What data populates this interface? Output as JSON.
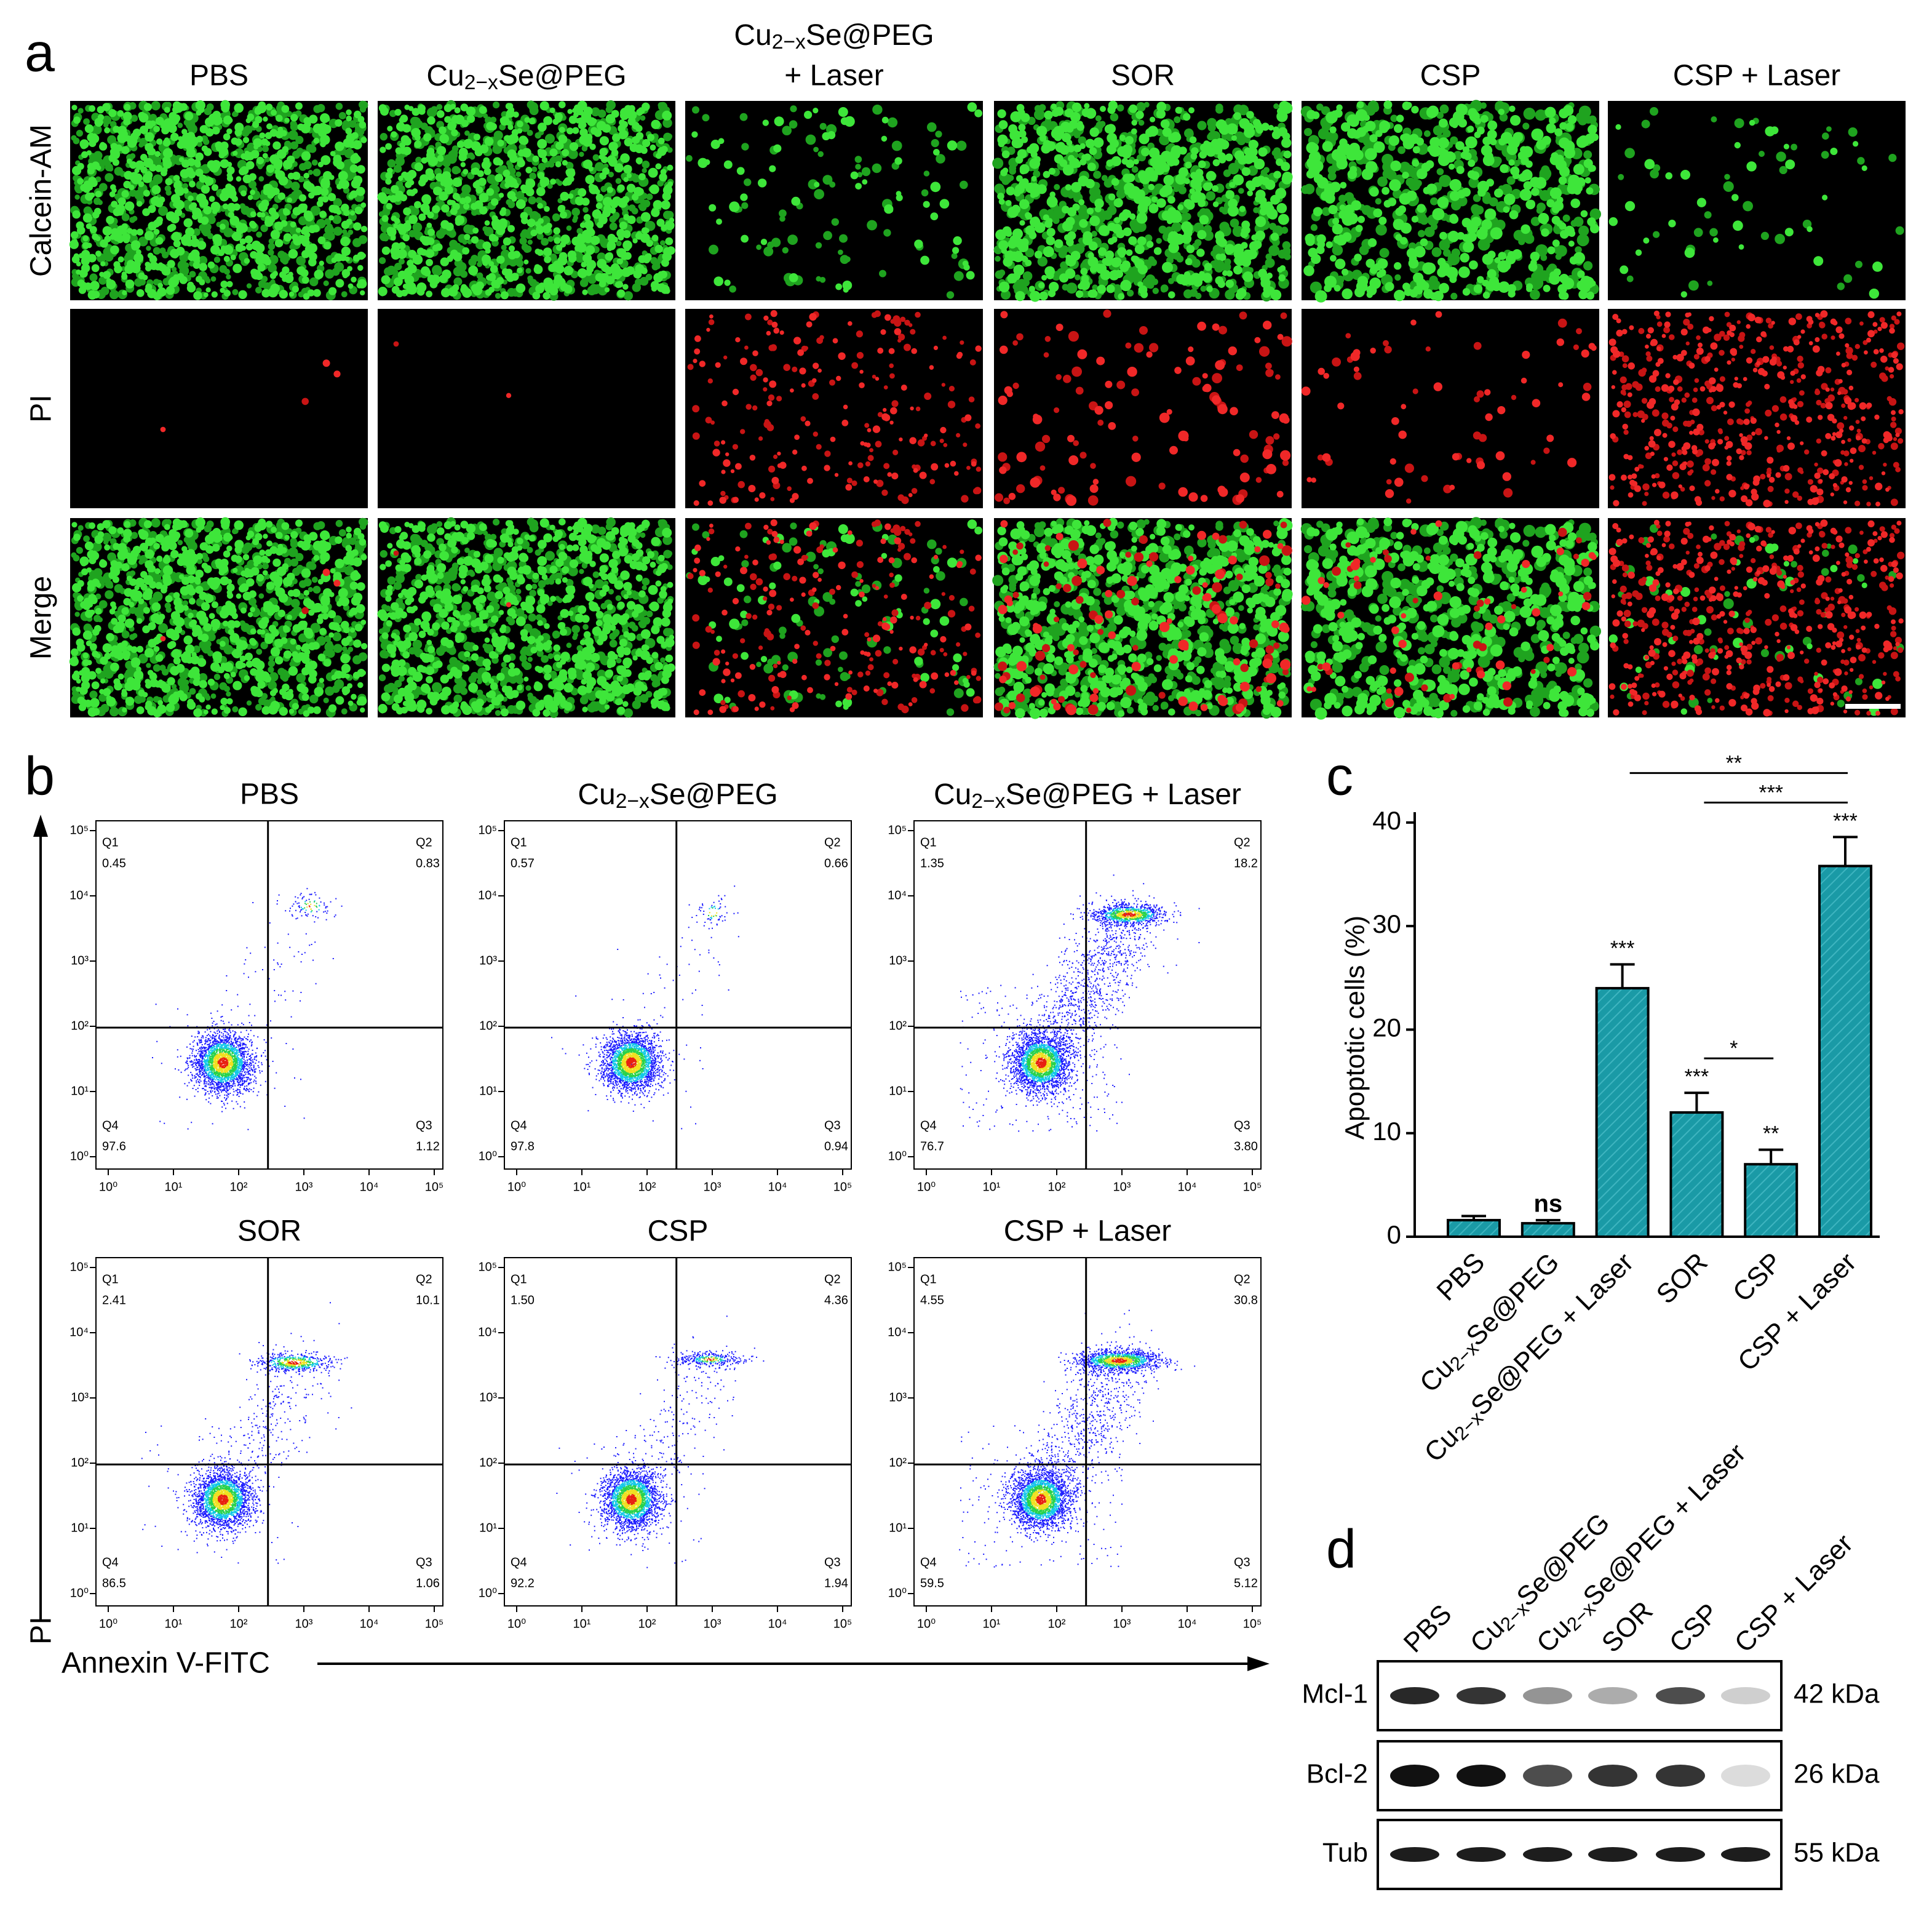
{
  "panel_a": {
    "label": "a",
    "columns": [
      "PBS",
      "Cu2−xSe@PEG",
      [
        "Cu2−xSe@PEG",
        "+ Laser"
      ],
      "SOR",
      "CSP",
      "CSP + Laser"
    ],
    "rows": [
      "Calcein-AM",
      "PI",
      "Merge"
    ]
  },
  "panel_b": {
    "label": "b",
    "y_axis_label": "PI",
    "x_axis_label": "Annexin V-FITC",
    "axis_ticks": [
      "10⁰",
      "10¹",
      "10²",
      "10³",
      "10⁴",
      "10⁵"
    ],
    "plots": [
      {
        "title": "PBS",
        "quadrants": [
          {
            "name": "Q1",
            "value": "0.45"
          },
          {
            "name": "Q2",
            "value": "0.83"
          },
          {
            "name": "Q4",
            "value": "97.6"
          },
          {
            "name": "Q3",
            "value": "1.12"
          }
        ]
      },
      {
        "title": "Cu2−xSe@PEG",
        "quadrants": [
          {
            "name": "Q1",
            "value": "0.57"
          },
          {
            "name": "Q2",
            "value": "0.66"
          },
          {
            "name": "Q4",
            "value": "97.8"
          },
          {
            "name": "Q3",
            "value": "0.94"
          }
        ]
      },
      {
        "title": "Cu2−xSe@PEG + Laser",
        "quadrants": [
          {
            "name": "Q1",
            "value": "1.35"
          },
          {
            "name": "Q2",
            "value": "18.2"
          },
          {
            "name": "Q4",
            "value": "76.7"
          },
          {
            "name": "Q3",
            "value": "3.80"
          }
        ]
      },
      {
        "title": "SOR",
        "quadrants": [
          {
            "name": "Q1",
            "value": "2.41"
          },
          {
            "name": "Q2",
            "value": "10.1"
          },
          {
            "name": "Q4",
            "value": "86.5"
          },
          {
            "name": "Q3",
            "value": "1.06"
          }
        ]
      },
      {
        "title": "CSP",
        "quadrants": [
          {
            "name": "Q1",
            "value": "1.50"
          },
          {
            "name": "Q2",
            "value": "4.36"
          },
          {
            "name": "Q4",
            "value": "92.2"
          },
          {
            "name": "Q3",
            "value": "1.94"
          }
        ]
      },
      {
        "title": "CSP + Laser",
        "quadrants": [
          {
            "name": "Q1",
            "value": "4.55"
          },
          {
            "name": "Q2",
            "value": "30.8"
          },
          {
            "name": "Q4",
            "value": "59.5"
          },
          {
            "name": "Q3",
            "value": "5.12"
          }
        ]
      }
    ]
  },
  "chart_data": {
    "type": "bar",
    "panel_label": "c",
    "y_label": "Apoptotic cells (%)",
    "categories": [
      "PBS",
      "Cu2−xSe@PEG",
      "Cu2−xSe@PEG + Laser",
      "SOR",
      "CSP",
      "CSP + Laser"
    ],
    "values": [
      1.6,
      1.3,
      24,
      12,
      7,
      35.8
    ],
    "errors": [
      0.4,
      0.3,
      2.3,
      1.9,
      1.4,
      2.8
    ],
    "annotations": [
      null,
      "ns",
      "***",
      "***",
      "**",
      "***"
    ],
    "comparisons": [
      {
        "pair": [
          2,
          5
        ],
        "label": "**"
      },
      {
        "pair": [
          3,
          5
        ],
        "label": "***"
      },
      {
        "pair": [
          3,
          4
        ],
        "label": "*"
      }
    ],
    "color": "#1a9aa6",
    "ylim": [
      0,
      41
    ],
    "yticks": [
      0,
      10,
      20,
      30,
      40
    ]
  },
  "panel_d": {
    "label": "d",
    "lanes": [
      "PBS",
      "Cu2−xSe@PEG",
      "Cu2−xSe@PEG + Laser",
      "SOR",
      "CSP",
      "CSP + Laser"
    ],
    "rows": [
      {
        "name": "Mcl-1",
        "size": "42 kDa"
      },
      {
        "name": "Bcl-2",
        "size": "26 kDa"
      },
      {
        "name": "Tub",
        "size": "55 kDa"
      }
    ]
  }
}
